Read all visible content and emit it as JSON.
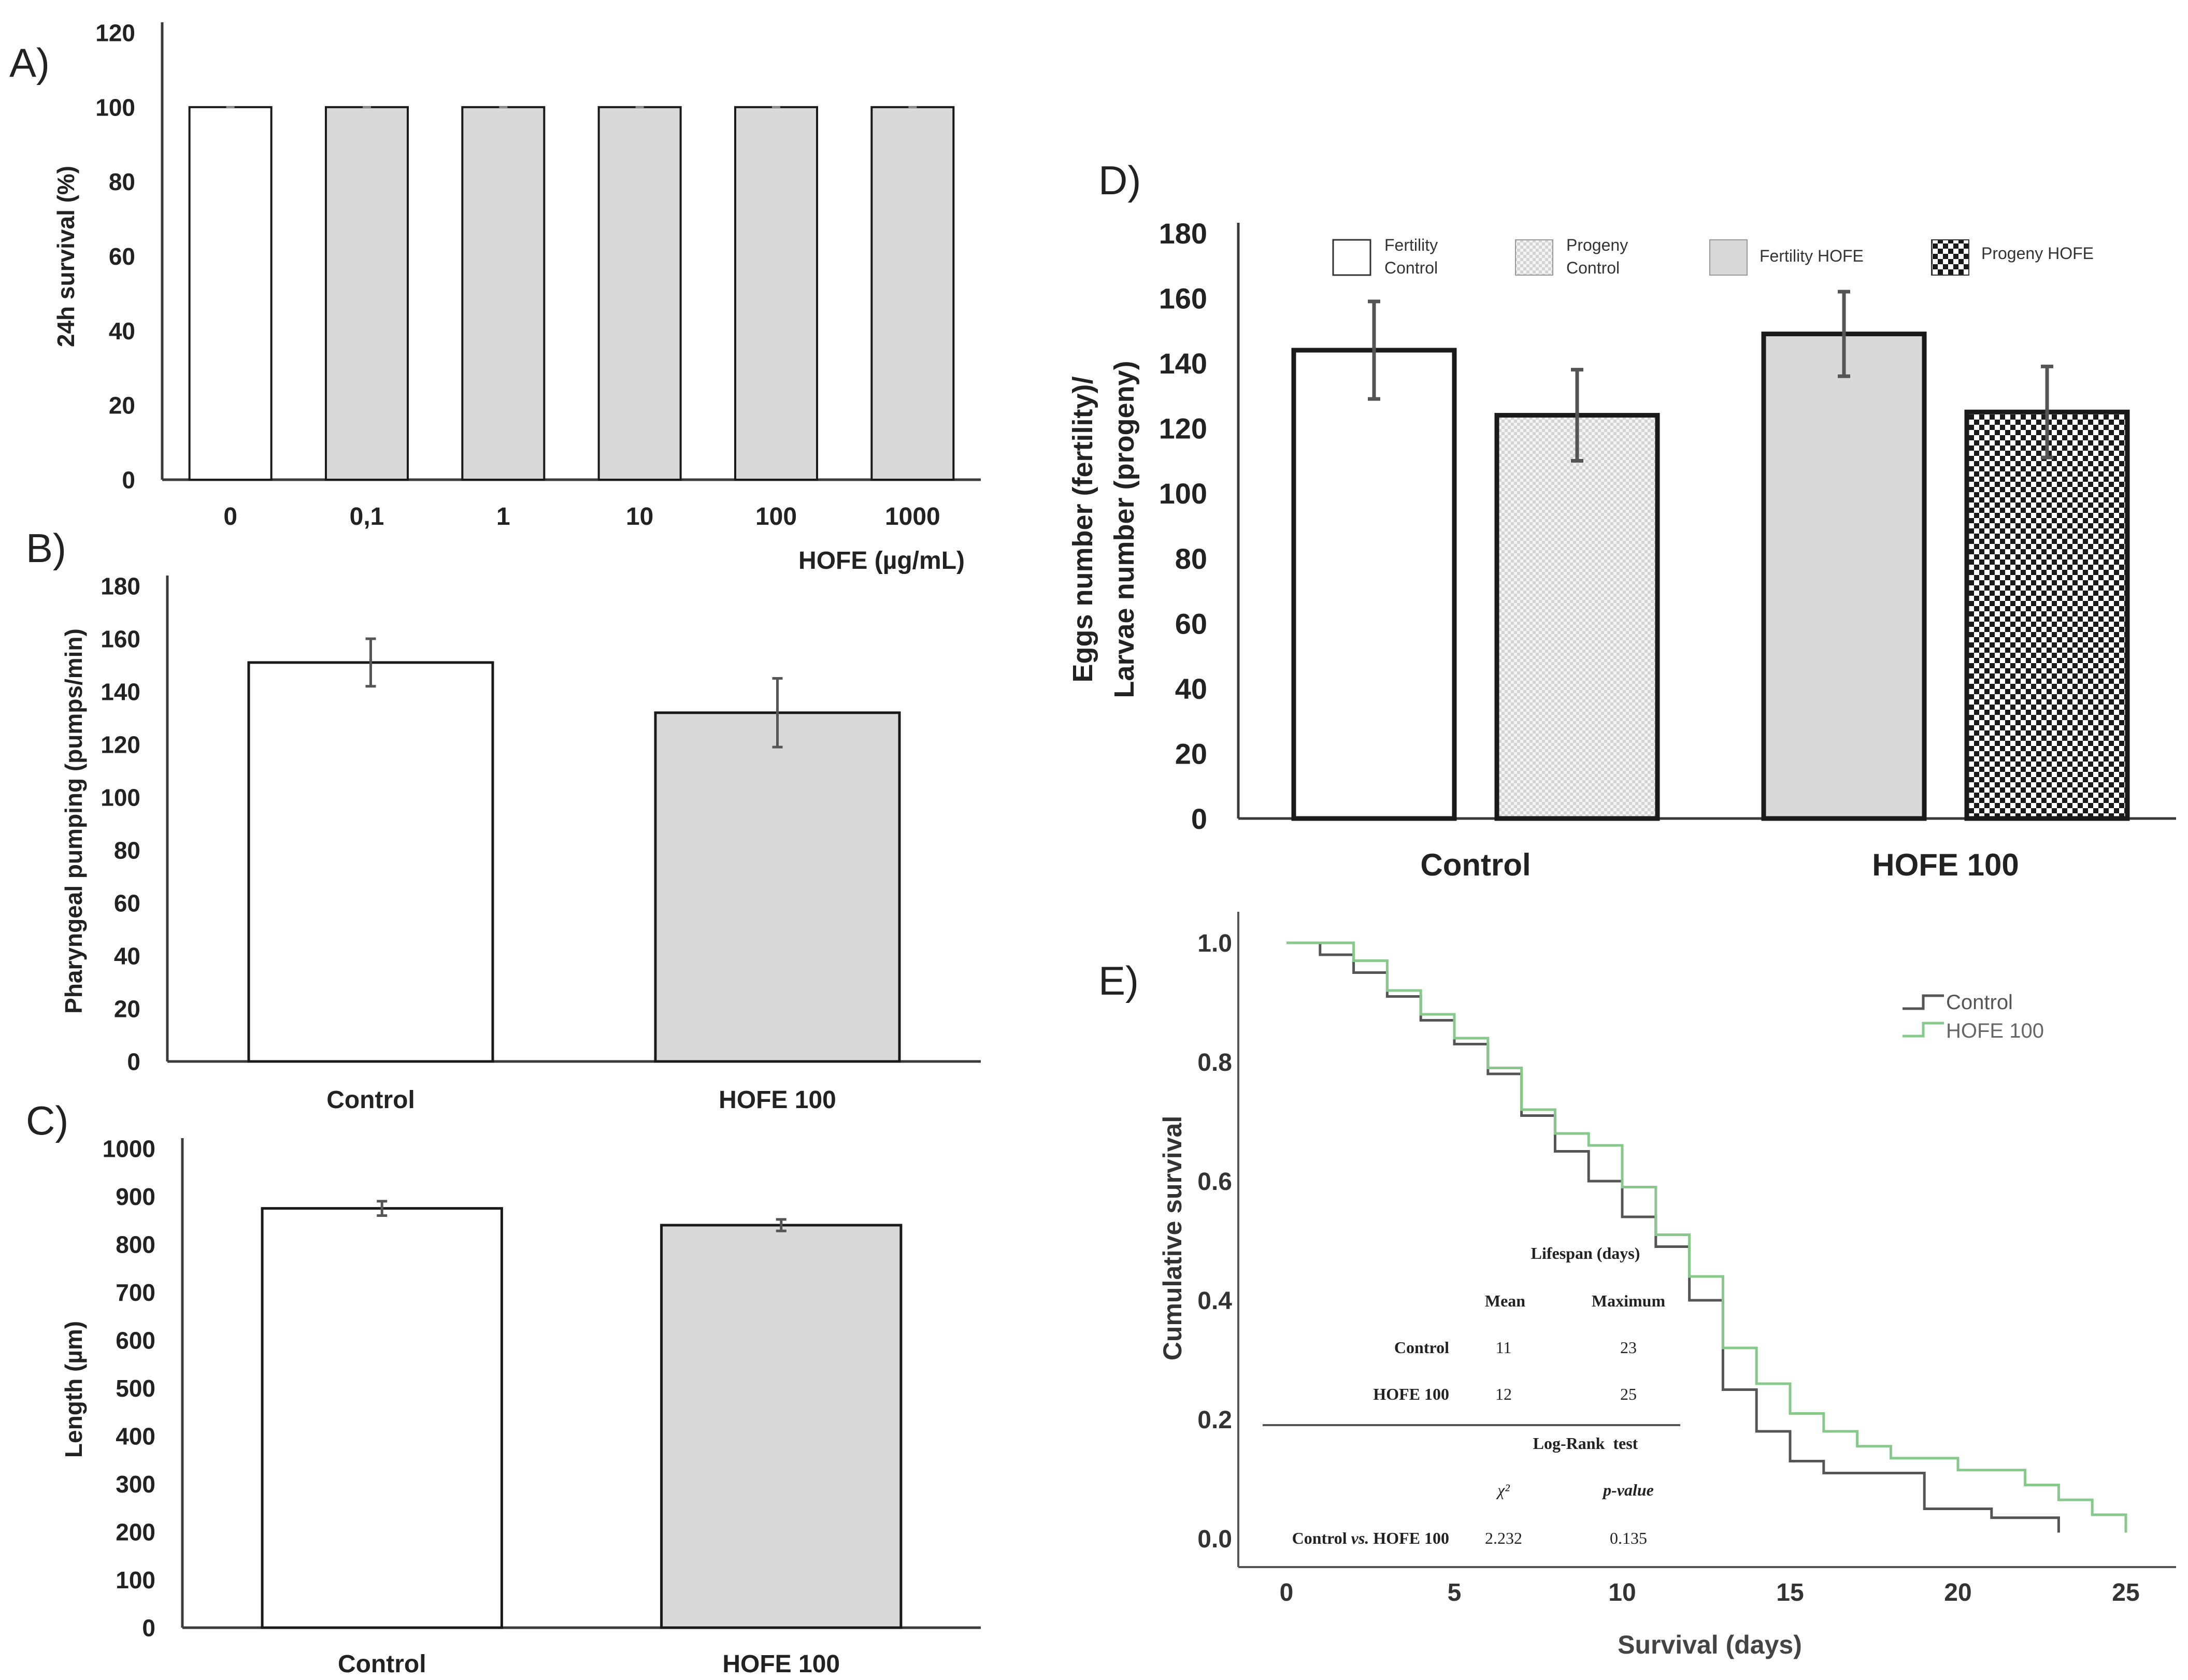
{
  "colors": {
    "axis": "#3a3a3a",
    "bar_edge": "#1a1a1a",
    "bar_white": "#ffffff",
    "bar_grey": "#d9d9d9",
    "error_bar": "#555555",
    "km_control": "#555555",
    "km_hofe": "#86c98a",
    "text": "#222222"
  },
  "chart_data": [
    {
      "panel": "A)",
      "type": "bar",
      "title": "",
      "xlabel": "HOFE (µg/mL)",
      "ylabel": "24h survival (%)",
      "categories": [
        "0",
        "0,1",
        "1",
        "10",
        "100",
        "1000"
      ],
      "values": [
        100,
        100,
        100,
        100,
        100,
        100
      ],
      "errors": [
        0,
        0,
        0,
        0,
        0,
        0
      ],
      "fills": [
        "white",
        "grey",
        "grey",
        "grey",
        "grey",
        "grey"
      ],
      "ylim": [
        0,
        120
      ],
      "yticks": [
        "0",
        "20",
        "40",
        "60",
        "80",
        "100",
        "120"
      ]
    },
    {
      "panel": "B)",
      "type": "bar",
      "title": "",
      "xlabel": "",
      "ylabel": "Pharyngeal pumping (pumps/min)",
      "categories": [
        "Control",
        "HOFE 100"
      ],
      "values": [
        151,
        132
      ],
      "errors": [
        9,
        13
      ],
      "fills": [
        "white",
        "grey"
      ],
      "ylim": [
        0,
        180
      ],
      "yticks": [
        "0",
        "20",
        "40",
        "60",
        "80",
        "100",
        "120",
        "140",
        "160",
        "180"
      ]
    },
    {
      "panel": "C)",
      "type": "bar",
      "title": "",
      "xlabel": "",
      "ylabel": "Length (µm)",
      "categories": [
        "Control",
        "HOFE 100"
      ],
      "values": [
        875,
        840
      ],
      "errors": [
        15,
        12
      ],
      "fills": [
        "white",
        "grey"
      ],
      "ylim": [
        0,
        1000
      ],
      "yticks": [
        "0",
        "100",
        "200",
        "300",
        "400",
        "500",
        "600",
        "700",
        "800",
        "900",
        "1000"
      ]
    },
    {
      "panel": "D)",
      "type": "bar",
      "title": "",
      "xlabel": "",
      "ylabel_line1": "Eggs number (fertility)/",
      "ylabel_line2": "Larvae number (progeny)",
      "categories": [
        "Control",
        "HOFE 100"
      ],
      "series": [
        {
          "name_line1": "Fertility",
          "name_line2": "Control",
          "group": 0,
          "value": 144,
          "error": 15,
          "fill": "white"
        },
        {
          "name_line1": "Progeny",
          "name_line2": "Control",
          "group": 0,
          "value": 124,
          "error": 14,
          "fill": "light-check"
        },
        {
          "name_line1": "Fertility HOFE",
          "name_line2": "",
          "group": 1,
          "value": 149,
          "error": 13,
          "fill": "grey"
        },
        {
          "name_line1": "Progeny HOFE",
          "name_line2": "",
          "group": 1,
          "value": 125,
          "error": 14,
          "fill": "dark-check"
        }
      ],
      "ylim": [
        0,
        180
      ],
      "yticks": [
        "0",
        "20",
        "40",
        "60",
        "80",
        "100",
        "120",
        "140",
        "160",
        "180"
      ],
      "legend": "top"
    },
    {
      "panel": "E)",
      "type": "line",
      "step": true,
      "title": "",
      "xlabel": "Survival (days)",
      "ylabel": "Cumulative survival",
      "xlim": [
        0,
        25
      ],
      "ylim": [
        0,
        1.0
      ],
      "xticks": [
        "0",
        "5",
        "10",
        "15",
        "20",
        "25"
      ],
      "yticks": [
        "0.0",
        "0.2",
        "0.4",
        "0.6",
        "0.8",
        "1.0"
      ],
      "legend": "top-right",
      "series": [
        {
          "name": "Control",
          "x": [
            0,
            1,
            2,
            3,
            4,
            5,
            6,
            7,
            8,
            9,
            10,
            11,
            12,
            13,
            14,
            15,
            16,
            17,
            18,
            19,
            20,
            21,
            22,
            23
          ],
          "y": [
            1.0,
            0.98,
            0.95,
            0.91,
            0.87,
            0.83,
            0.78,
            0.71,
            0.65,
            0.6,
            0.54,
            0.49,
            0.4,
            0.25,
            0.18,
            0.13,
            0.11,
            0.11,
            0.11,
            0.05,
            0.05,
            0.035,
            0.035,
            0.01
          ]
        },
        {
          "name": "HOFE 100",
          "x": [
            0,
            1,
            2,
            3,
            4,
            5,
            6,
            7,
            8,
            9,
            10,
            11,
            12,
            13,
            14,
            15,
            16,
            17,
            18,
            19,
            20,
            21,
            22,
            23,
            24,
            25
          ],
          "y": [
            1.0,
            1.0,
            0.97,
            0.92,
            0.88,
            0.84,
            0.79,
            0.72,
            0.68,
            0.66,
            0.59,
            0.51,
            0.44,
            0.32,
            0.26,
            0.21,
            0.18,
            0.155,
            0.135,
            0.135,
            0.115,
            0.115,
            0.09,
            0.065,
            0.04,
            0.01
          ]
        }
      ],
      "inset_table": {
        "header_lifespan": "Lifespan (days)",
        "col_mean": "Mean",
        "col_max": "Maximum",
        "rows": [
          {
            "label": "Control",
            "mean": "11",
            "max": "23"
          },
          {
            "label": "HOFE 100",
            "mean": "12",
            "max": "25"
          }
        ],
        "header_test": "Log-Rank  test",
        "col_chi": "χ²",
        "col_p": "p-value",
        "test_row_label_a": "Control",
        "test_row_vs": "vs.",
        "test_row_label_b": "HOFE 100",
        "chi": "2.232",
        "p": "0.135"
      }
    }
  ]
}
